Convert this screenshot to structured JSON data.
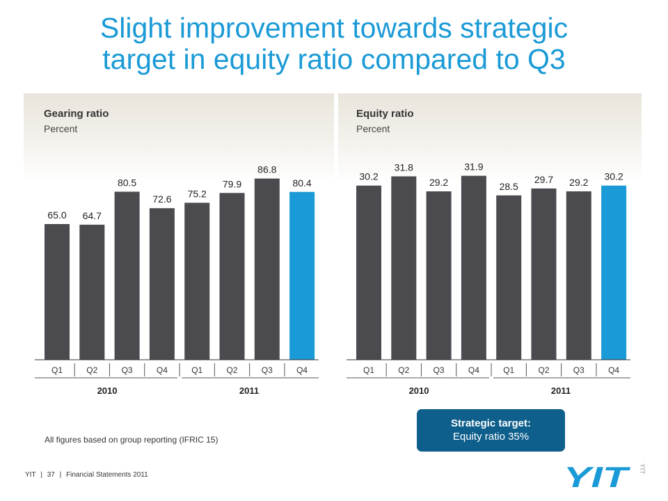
{
  "title_line1": "Slight improvement towards strategic",
  "title_line2": "target in equity ratio compared to Q3",
  "colors": {
    "bar": "#4a4a4f",
    "highlight": "#1a9ad6",
    "title": "#1a9ad6",
    "target_box": "#0e5f8c"
  },
  "chart_data": [
    {
      "type": "bar",
      "title": "Gearing ratio",
      "subtitle": "Percent",
      "categories": [
        "Q1",
        "Q2",
        "Q3",
        "Q4",
        "Q1",
        "Q2",
        "Q3",
        "Q4"
      ],
      "groups": [
        "2010",
        "2011"
      ],
      "values": [
        65.0,
        64.7,
        80.5,
        72.6,
        75.2,
        79.9,
        86.8,
        80.4
      ],
      "value_labels": [
        "65.0",
        "64.7",
        "80.5",
        "72.6",
        "75.2",
        "79.9",
        "86.8",
        "80.4"
      ],
      "highlight_index": 7,
      "ylim": [
        0,
        100
      ]
    },
    {
      "type": "bar",
      "title": "Equity ratio",
      "subtitle": "Percent",
      "categories": [
        "Q1",
        "Q2",
        "Q3",
        "Q4",
        "Q1",
        "Q2",
        "Q3",
        "Q4"
      ],
      "groups": [
        "2010",
        "2011"
      ],
      "values": [
        30.2,
        31.8,
        29.2,
        31.9,
        28.5,
        29.7,
        29.2,
        30.2
      ],
      "value_labels": [
        "30.2",
        "31.8",
        "29.2",
        "31.9",
        "28.5",
        "29.7",
        "29.2",
        "30.2"
      ],
      "highlight_index": 7,
      "ylim": [
        0,
        36.2
      ]
    }
  ],
  "note": "All figures based on group reporting (IFRIC 15)",
  "strategic_target": {
    "title": "Strategic target:",
    "text": "Equity ratio 35%"
  },
  "footer": {
    "company": "YIT",
    "sep1": "|",
    "page": "37",
    "sep2": "|",
    "doc": "Financial Statements 2011"
  },
  "logo": {
    "text": "YIT",
    "vertical_text": "YIT"
  }
}
